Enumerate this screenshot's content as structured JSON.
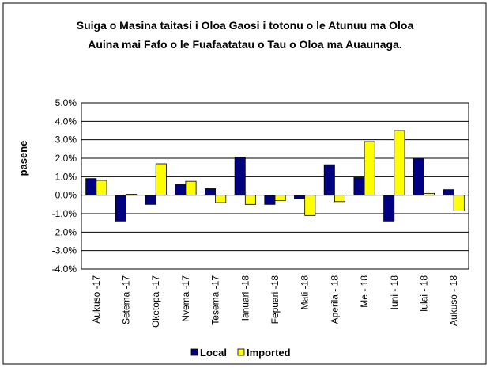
{
  "chart_data": {
    "type": "bar",
    "title": "Suiga o Masina taitasi i Oloa Gaosi i totonu o le Atunuu ma Oloa Auina mai Fafo o le Fuafaatatau o Tau o Oloa ma Auaunaga.",
    "y_label": "pasene",
    "categories": [
      "Aukuso -17",
      "Setema -17",
      "Oketopa -17",
      "Nvema -17",
      "Tesema -17",
      "Ianuari -18",
      "Fepuari -18",
      "Mati -18",
      "Aperila - 18",
      "Me - 18",
      "Iuni - 18",
      "Iulai - 18",
      "Aukuso - 18"
    ],
    "series": [
      {
        "name": "Local",
        "color": "#000080",
        "values": [
          0.9,
          -1.4,
          -0.5,
          0.6,
          0.35,
          2.05,
          -0.5,
          -0.2,
          1.65,
          0.95,
          -1.4,
          2.0,
          0.3
        ]
      },
      {
        "name": "Imported",
        "color": "#ffff00",
        "values": [
          0.8,
          0.05,
          1.7,
          0.75,
          -0.4,
          -0.5,
          -0.3,
          -1.1,
          -0.35,
          2.9,
          3.5,
          0.1,
          -0.85
        ]
      }
    ],
    "ylim": [
      -4,
      5
    ],
    "yticks": [
      {
        "value": -4,
        "label": "-4.0%"
      },
      {
        "value": -3,
        "label": "-3.0%"
      },
      {
        "value": -2,
        "label": "-2.0%"
      },
      {
        "value": -1,
        "label": "-1.0%"
      },
      {
        "value": 0,
        "label": "0.0%"
      },
      {
        "value": 1,
        "label": "1.0%"
      },
      {
        "value": 2,
        "label": "2.0%"
      },
      {
        "value": 3,
        "label": "3.0%"
      },
      {
        "value": 4,
        "label": "4.0%"
      },
      {
        "value": 5,
        "label": "5.0%"
      }
    ],
    "grid": true,
    "legend": "bottom"
  }
}
